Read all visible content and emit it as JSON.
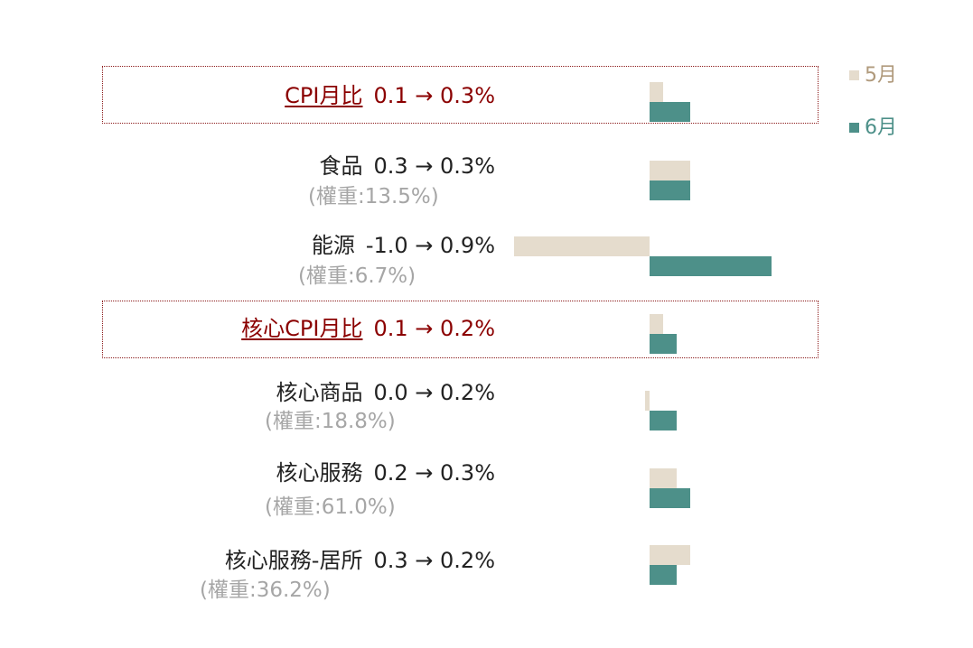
{
  "colors": {
    "may": "#e5dccd",
    "june": "#4d9089",
    "highlight": "#8b0000",
    "may_text": "#b09a7c",
    "june_text": "#4d9089"
  },
  "legend": {
    "may": "5月",
    "june": "6月"
  },
  "chart_data": {
    "type": "bar",
    "orientation": "horizontal",
    "categories": [
      "CPI月比",
      "食品",
      "能源",
      "核心CPI月比",
      "核心商品",
      "核心服務",
      "核心服務-居所"
    ],
    "series": [
      {
        "name": "5月",
        "values": [
          0.1,
          0.3,
          -1.0,
          0.1,
          0.0,
          0.2,
          0.3
        ]
      },
      {
        "name": "6月",
        "values": [
          0.3,
          0.3,
          0.9,
          0.2,
          0.2,
          0.3,
          0.2
        ]
      }
    ]
  },
  "rows": [
    {
      "name": "CPI月比",
      "change": "0.1 → 0.3%",
      "weight": ""
    },
    {
      "name": "食品",
      "change": "0.3 → 0.3%",
      "weight": "(權重:13.5%)"
    },
    {
      "name": "能源",
      "change": "-1.0 → 0.9%",
      "weight": "(權重:6.7%)"
    },
    {
      "name": "核心CPI月比",
      "change": "0.1 → 0.2%",
      "weight": ""
    },
    {
      "name": "核心商品",
      "change": "0.0 → 0.2%",
      "weight": "(權重:18.8%)"
    },
    {
      "name": "核心服務",
      "change": "0.2 → 0.3%",
      "weight": "(權重:61.0%)"
    },
    {
      "name": "核心服務-居所",
      "change": "0.3 → 0.2%",
      "weight": "(權重:36.2%)"
    }
  ]
}
